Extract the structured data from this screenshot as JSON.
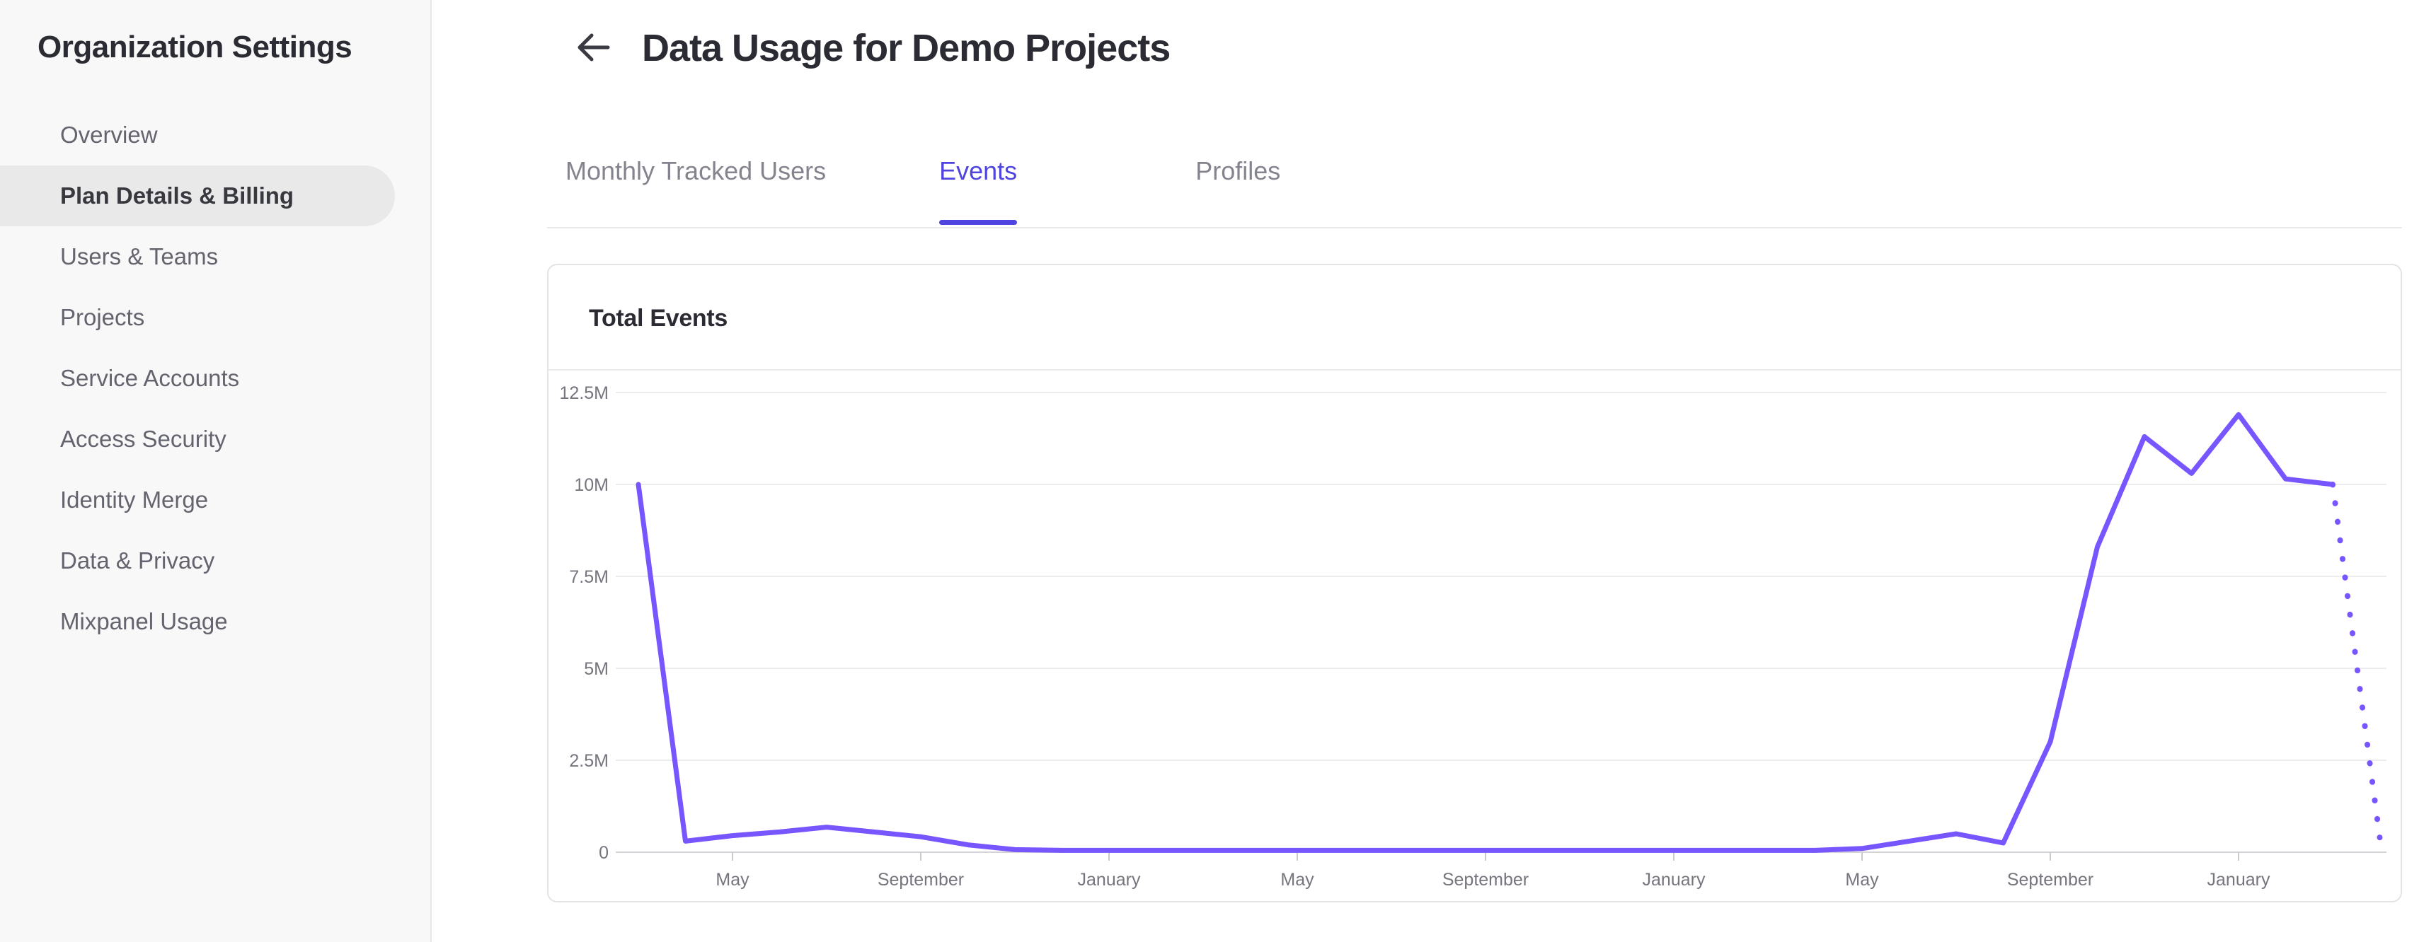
{
  "sidebar": {
    "title": "Organization Settings",
    "items": [
      {
        "label": "Overview",
        "active": false
      },
      {
        "label": "Plan Details & Billing",
        "active": true
      },
      {
        "label": "Users & Teams",
        "active": false
      },
      {
        "label": "Projects",
        "active": false
      },
      {
        "label": "Service Accounts",
        "active": false
      },
      {
        "label": "Access Security",
        "active": false
      },
      {
        "label": "Identity Merge",
        "active": false
      },
      {
        "label": "Data & Privacy",
        "active": false
      },
      {
        "label": "Mixpanel Usage",
        "active": false
      }
    ]
  },
  "header": {
    "title": "Data Usage for Demo Projects",
    "back_icon": "arrow-left"
  },
  "tabs": [
    {
      "label": "Monthly Tracked Users",
      "active": false
    },
    {
      "label": "Events",
      "active": true
    },
    {
      "label": "Profiles",
      "active": false
    }
  ],
  "card": {
    "title": "Total Events"
  },
  "colors": {
    "accent": "#4f44e0",
    "chart_line": "#7856ff",
    "sidebar_bg": "#f8f8f9",
    "active_pill": "#e9e9ea",
    "grid_line": "#ececef",
    "axis_line": "#d4d4d8",
    "axis_text": "#75757e"
  },
  "chart_data": {
    "type": "line",
    "title": "Total Events",
    "xlabel": "",
    "ylabel": "",
    "grid": "horizontal",
    "legend": false,
    "line_color": "#7856ff",
    "ylim_millions": [
      0,
      12.5
    ],
    "y_tick_labels": [
      "12.5M",
      "10M",
      "7.5M",
      "5M",
      "2.5M",
      "0"
    ],
    "y_tick_values_millions": [
      12.5,
      10,
      7.5,
      5,
      2.5,
      0
    ],
    "x_tick_labels": [
      "May",
      "September",
      "January",
      "May",
      "September",
      "January",
      "May",
      "September",
      "January"
    ],
    "x_tick_indices": [
      2,
      6,
      10,
      14,
      18,
      22,
      26,
      30,
      34
    ],
    "values_millions": [
      10.0,
      0.3,
      0.45,
      0.55,
      0.68,
      0.55,
      0.42,
      0.2,
      0.07,
      0.05,
      0.05,
      0.05,
      0.05,
      0.05,
      0.05,
      0.05,
      0.05,
      0.05,
      0.05,
      0.05,
      0.05,
      0.05,
      0.05,
      0.05,
      0.05,
      0.05,
      0.1,
      0.3,
      0.5,
      0.25,
      3.0,
      8.3,
      11.3,
      10.3,
      11.9,
      10.15,
      10.0,
      0.4
    ],
    "dashed_from_index": 36
  }
}
